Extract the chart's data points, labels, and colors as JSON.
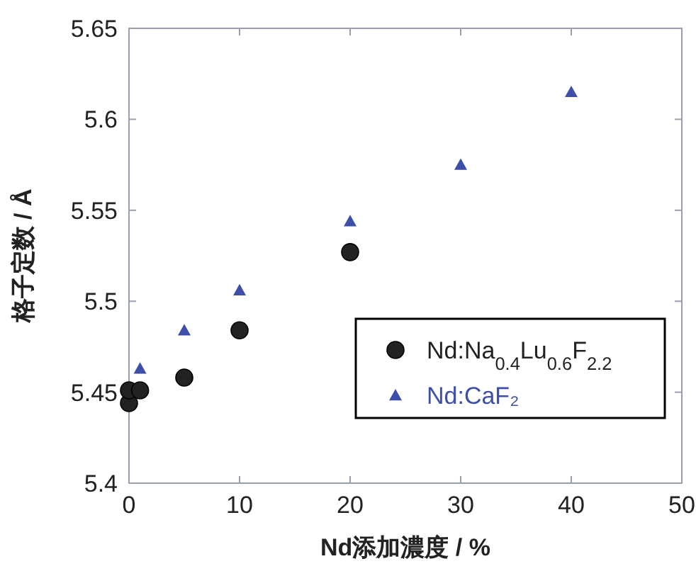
{
  "chart_data": {
    "type": "scatter",
    "xlabel": "Nd添加濃度 / %",
    "ylabel": "格子定数 / Å",
    "xlim": [
      0,
      50
    ],
    "xticks": [
      0,
      10,
      20,
      30,
      40,
      50
    ],
    "ylim": [
      5.4,
      5.65
    ],
    "yticks": [
      5.4,
      5.45,
      5.5,
      5.55,
      5.6,
      5.65
    ],
    "grid": false,
    "legend": "right",
    "series": [
      {
        "name": "Nd:Na$_{0.4}$Lu$_{0.6}$F$_{2.2}$",
        "color": "#222222",
        "marker": "circle",
        "x": [
          0,
          0,
          1,
          5,
          10,
          20
        ],
        "values": [
          5.444,
          5.451,
          5.451,
          5.458,
          5.484,
          5.527
        ]
      },
      {
        "name": "Nd:CaF₂",
        "color": "#3d4fa8",
        "marker": "triangle",
        "x": [
          1,
          5,
          10,
          20,
          30,
          40
        ],
        "values": [
          5.463,
          5.484,
          5.506,
          5.544,
          5.575,
          5.615
        ]
      }
    ]
  }
}
